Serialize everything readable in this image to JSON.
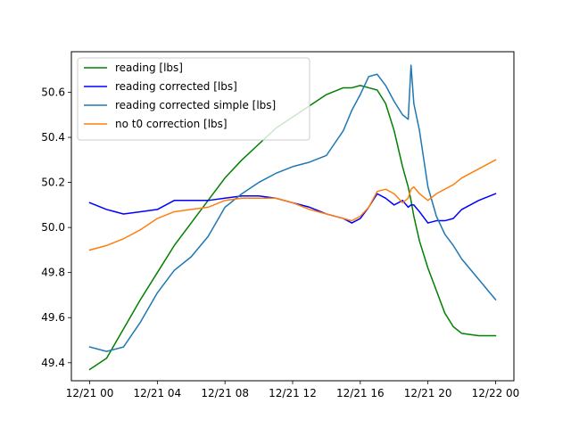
{
  "chart_data": {
    "type": "line",
    "title": "",
    "xlabel": "",
    "ylabel": "",
    "xlim": [
      "2021-12-20 22:55",
      "2021-12-22 01:05"
    ],
    "ylim": [
      49.32,
      50.78
    ],
    "x_ticks": [
      "2021-12-21 00:00",
      "2021-12-21 04:00",
      "2021-12-21 08:00",
      "2021-12-21 12:00",
      "2021-12-21 16:00",
      "2021-12-21 20:00",
      "2021-12-22 00:00"
    ],
    "x_tick_labels": [
      "12/21 00",
      "12/21 04",
      "12/21 08",
      "12/21 12",
      "12/21 16",
      "12/21 20",
      "12/22 00"
    ],
    "y_ticks": [
      49.4,
      49.6,
      49.8,
      50.0,
      50.2,
      50.4,
      50.6
    ],
    "y_tick_labels": [
      "49.4",
      "49.6",
      "49.8",
      "50.0",
      "50.2",
      "50.4",
      "50.6"
    ],
    "grid": false,
    "legend_position": "top-left",
    "x": [
      "2021-12-21 00:00",
      "2021-12-21 01:00",
      "2021-12-21 02:00",
      "2021-12-21 03:00",
      "2021-12-21 04:00",
      "2021-12-21 05:00",
      "2021-12-21 06:00",
      "2021-12-21 07:00",
      "2021-12-21 08:00",
      "2021-12-21 09:00",
      "2021-12-21 10:00",
      "2021-12-21 11:00",
      "2021-12-21 12:00",
      "2021-12-21 13:00",
      "2021-12-21 14:00",
      "2021-12-21 15:00",
      "2021-12-21 15:30",
      "2021-12-21 16:00",
      "2021-12-21 16:30",
      "2021-12-21 17:00",
      "2021-12-21 17:30",
      "2021-12-21 18:00",
      "2021-12-21 18:30",
      "2021-12-21 18:50",
      "2021-12-21 19:00",
      "2021-12-21 19:10",
      "2021-12-21 19:30",
      "2021-12-21 20:00",
      "2021-12-21 20:30",
      "2021-12-21 21:00",
      "2021-12-21 21:30",
      "2021-12-21 22:00",
      "2021-12-21 23:00",
      "2021-12-22 00:00"
    ],
    "series": [
      {
        "name": "reading [lbs]",
        "color": "#008000",
        "values": [
          49.37,
          49.42,
          49.55,
          49.68,
          49.8,
          49.92,
          50.02,
          50.12,
          50.22,
          50.3,
          50.37,
          50.44,
          50.49,
          50.54,
          50.59,
          50.62,
          50.62,
          50.63,
          50.62,
          50.61,
          50.55,
          50.43,
          50.27,
          50.18,
          50.12,
          50.05,
          49.94,
          49.82,
          49.72,
          49.62,
          49.56,
          49.53,
          49.52,
          49.52
        ]
      },
      {
        "name": "reading corrected [lbs]",
        "color": "#0000ff",
        "values": [
          50.11,
          50.08,
          50.06,
          50.07,
          50.08,
          50.12,
          50.12,
          50.12,
          50.13,
          50.14,
          50.14,
          50.13,
          50.11,
          50.09,
          50.06,
          50.04,
          50.02,
          50.04,
          50.09,
          50.15,
          50.13,
          50.1,
          50.12,
          50.09,
          50.1,
          50.1,
          50.07,
          50.02,
          50.03,
          50.03,
          50.04,
          50.08,
          50.12,
          50.15
        ]
      },
      {
        "name": "reading corrected simple [lbs]",
        "color": "#1f77b4",
        "values": [
          49.47,
          49.45,
          49.47,
          49.58,
          49.71,
          49.81,
          49.87,
          49.96,
          50.09,
          50.15,
          50.2,
          50.24,
          50.27,
          50.29,
          50.32,
          50.43,
          50.52,
          50.59,
          50.67,
          50.68,
          50.63,
          50.56,
          50.5,
          50.48,
          50.72,
          50.55,
          50.43,
          50.18,
          50.05,
          49.97,
          49.92,
          49.86,
          49.77,
          49.68
        ]
      },
      {
        "name": "no t0 correction [lbs]",
        "color": "#ff7f0e",
        "values": [
          49.9,
          49.92,
          49.95,
          49.99,
          50.04,
          50.07,
          50.08,
          50.09,
          50.12,
          50.13,
          50.13,
          50.13,
          50.11,
          50.08,
          50.06,
          50.04,
          50.03,
          50.05,
          50.09,
          50.16,
          50.17,
          50.15,
          50.11,
          50.13,
          50.17,
          50.18,
          50.15,
          50.12,
          50.15,
          50.17,
          50.19,
          50.22,
          50.26,
          50.3
        ]
      }
    ]
  }
}
